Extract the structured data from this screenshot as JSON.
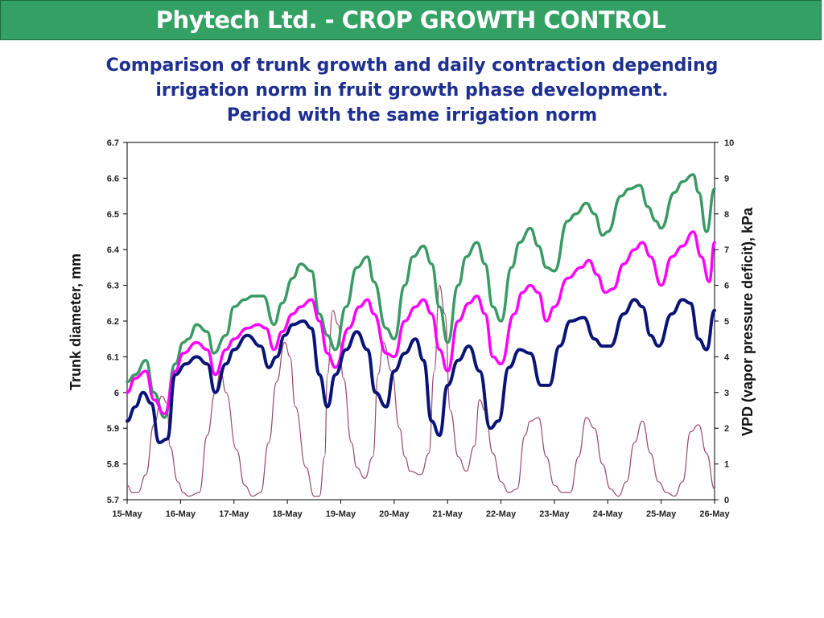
{
  "header": {
    "title": "Phytech Ltd. - CROP GROWTH CONTROL"
  },
  "subtitle": {
    "lines": [
      "Comparison of trunk growth and daily contraction depending",
      "irrigation norm in fruit growth phase development.",
      "Period with the same irrigation norm"
    ]
  },
  "colors": {
    "banner": "#33a064",
    "subtitle": "#1d2f8f",
    "green_series": "#3a9a64",
    "magenta_series": "#ff00ff",
    "navy_series": "#0a1476",
    "vpd_series": "#9b4a72"
  },
  "chart_data": {
    "type": "line",
    "title": "",
    "xlabel": "",
    "ylabel": "Trunk diameter, mm",
    "y2label": "VPD (vapor pressure deficit), kPa",
    "x_ticks": [
      "15-May",
      "16-May",
      "17-May",
      "18-May",
      "19-May",
      "20-May",
      "21-May",
      "22-May",
      "23-May",
      "24-May",
      "25-May",
      "26-May"
    ],
    "xlim": [
      0,
      11
    ],
    "ylim": [
      5.7,
      6.7
    ],
    "y_ticks": [
      "5.7",
      "5.8",
      "5.9",
      "6",
      "6.1",
      "6.2",
      "6.3",
      "6.4",
      "6.5",
      "6.6",
      "6.7"
    ],
    "y2lim": [
      0,
      10
    ],
    "y2_ticks": [
      "0",
      "1",
      "2",
      "3",
      "4",
      "5",
      "6",
      "7",
      "8",
      "9",
      "10"
    ],
    "grid": false,
    "legend": "none",
    "series": [
      {
        "axis": "left",
        "color": "#3a9a64",
        "width": 3.5,
        "x": [
          0,
          0.15,
          0.35,
          0.5,
          0.7,
          0.9,
          1.05,
          1.15,
          1.3,
          1.5,
          1.62,
          1.85,
          2.0,
          2.2,
          2.35,
          2.55,
          2.75,
          2.9,
          3.1,
          3.25,
          3.45,
          3.6,
          3.75,
          3.9,
          4.1,
          4.3,
          4.5,
          4.62,
          4.85,
          5.0,
          5.2,
          5.35,
          5.55,
          5.7,
          5.85,
          6.0,
          6.2,
          6.35,
          6.55,
          6.7,
          6.85,
          7.0,
          7.2,
          7.35,
          7.55,
          7.7,
          7.85,
          8.0,
          8.25,
          8.4,
          8.6,
          8.75,
          8.9,
          9.0,
          9.25,
          9.4,
          9.6,
          9.75,
          9.9,
          10.0,
          10.25,
          10.4,
          10.6,
          10.7,
          10.85,
          11.0
        ],
        "y": [
          6.03,
          6.05,
          6.09,
          6.0,
          5.93,
          6.08,
          6.14,
          6.15,
          6.19,
          6.17,
          6.11,
          6.16,
          6.24,
          6.26,
          6.27,
          6.27,
          6.19,
          6.25,
          6.32,
          6.36,
          6.34,
          6.22,
          6.16,
          6.12,
          6.24,
          6.35,
          6.38,
          6.31,
          6.18,
          6.15,
          6.3,
          6.38,
          6.41,
          6.36,
          6.24,
          6.14,
          6.3,
          6.38,
          6.42,
          6.36,
          6.24,
          6.2,
          6.35,
          6.42,
          6.46,
          6.41,
          6.35,
          6.34,
          6.48,
          6.5,
          6.53,
          6.5,
          6.44,
          6.45,
          6.55,
          6.57,
          6.58,
          6.52,
          6.48,
          6.46,
          6.56,
          6.59,
          6.61,
          6.56,
          6.45,
          6.57
        ]
      },
      {
        "axis": "left",
        "color": "#ff00ff",
        "width": 3.5,
        "x": [
          0,
          0.15,
          0.35,
          0.5,
          0.7,
          0.9,
          1.05,
          1.3,
          1.5,
          1.65,
          1.85,
          2.0,
          2.25,
          2.45,
          2.6,
          2.75,
          2.9,
          3.1,
          3.25,
          3.45,
          3.6,
          3.75,
          3.9,
          4.15,
          4.35,
          4.5,
          4.62,
          4.85,
          5.0,
          5.2,
          5.4,
          5.55,
          5.7,
          5.85,
          6.0,
          6.2,
          6.4,
          6.55,
          6.7,
          6.85,
          7.0,
          7.25,
          7.4,
          7.55,
          7.7,
          7.85,
          8.0,
          8.25,
          8.5,
          8.65,
          8.8,
          8.95,
          9.1,
          9.3,
          9.5,
          9.65,
          9.8,
          10.0,
          10.2,
          10.4,
          10.6,
          10.75,
          10.9,
          11.0
        ],
        "y": [
          6.0,
          6.04,
          6.06,
          5.98,
          5.94,
          6.06,
          6.11,
          6.14,
          6.12,
          6.05,
          6.12,
          6.15,
          6.18,
          6.19,
          6.18,
          6.12,
          6.17,
          6.22,
          6.24,
          6.26,
          6.2,
          6.11,
          6.07,
          6.18,
          6.24,
          6.26,
          6.22,
          6.11,
          6.1,
          6.2,
          6.24,
          6.26,
          6.22,
          6.12,
          6.06,
          6.2,
          6.25,
          6.27,
          6.22,
          6.1,
          6.08,
          6.22,
          6.28,
          6.3,
          6.28,
          6.2,
          6.24,
          6.32,
          6.35,
          6.37,
          6.33,
          6.28,
          6.29,
          6.36,
          6.4,
          6.42,
          6.38,
          6.3,
          6.38,
          6.41,
          6.45,
          6.38,
          6.31,
          6.42
        ]
      },
      {
        "axis": "left",
        "color": "#0a1476",
        "width": 4,
        "x": [
          0,
          0.15,
          0.3,
          0.45,
          0.6,
          0.75,
          0.9,
          1.1,
          1.3,
          1.5,
          1.65,
          1.85,
          2.0,
          2.25,
          2.5,
          2.65,
          2.8,
          2.95,
          3.1,
          3.3,
          3.45,
          3.6,
          3.75,
          3.9,
          4.1,
          4.3,
          4.5,
          4.65,
          4.85,
          5.0,
          5.2,
          5.4,
          5.55,
          5.7,
          5.85,
          6.0,
          6.2,
          6.4,
          6.6,
          6.8,
          6.95,
          7.15,
          7.35,
          7.55,
          7.75,
          7.9,
          8.1,
          8.3,
          8.55,
          8.75,
          8.9,
          9.05,
          9.3,
          9.5,
          9.65,
          9.8,
          9.95,
          10.2,
          10.4,
          10.55,
          10.7,
          10.85,
          11.0
        ],
        "y": [
          5.92,
          5.96,
          6.0,
          5.97,
          5.86,
          5.87,
          6.05,
          6.08,
          6.1,
          6.08,
          6.0,
          6.08,
          6.12,
          6.16,
          6.13,
          6.07,
          6.1,
          6.16,
          6.19,
          6.2,
          6.18,
          6.05,
          5.96,
          6.05,
          6.12,
          6.17,
          6.12,
          6.0,
          5.96,
          6.06,
          6.11,
          6.15,
          6.09,
          5.92,
          5.88,
          6.02,
          6.09,
          6.13,
          6.06,
          5.9,
          5.92,
          6.07,
          6.12,
          6.11,
          6.02,
          6.02,
          6.13,
          6.2,
          6.21,
          6.15,
          6.13,
          6.13,
          6.22,
          6.26,
          6.24,
          6.16,
          6.13,
          6.22,
          6.26,
          6.25,
          6.15,
          6.12,
          6.23
        ]
      },
      {
        "axis": "right",
        "color": "#9b4a72",
        "width": 1.2,
        "x": [
          0,
          0.1,
          0.2,
          0.35,
          0.5,
          0.65,
          0.75,
          0.8,
          0.95,
          1.05,
          1.15,
          1.35,
          1.5,
          1.65,
          1.75,
          1.85,
          2.05,
          2.2,
          2.35,
          2.5,
          2.65,
          2.8,
          2.95,
          3.05,
          3.15,
          3.35,
          3.5,
          3.6,
          3.7,
          3.75,
          3.85,
          3.95,
          4.05,
          4.2,
          4.3,
          4.45,
          4.6,
          4.7,
          4.8,
          4.95,
          5.1,
          5.2,
          5.3,
          5.5,
          5.65,
          5.75,
          5.85,
          5.95,
          6.05,
          6.2,
          6.35,
          6.5,
          6.6,
          6.7,
          6.85,
          7.0,
          7.15,
          7.3,
          7.45,
          7.55,
          7.7,
          7.85,
          8.0,
          8.15,
          8.3,
          8.45,
          8.6,
          8.75,
          8.9,
          9.05,
          9.2,
          9.35,
          9.5,
          9.65,
          9.8,
          9.95,
          10.1,
          10.25,
          10.4,
          10.55,
          10.7,
          10.85,
          11.0
        ],
        "y": [
          0.4,
          0.2,
          0.2,
          0.7,
          2.1,
          2.9,
          2.7,
          1.5,
          0.5,
          0.2,
          0.1,
          0.2,
          1.8,
          3.0,
          3.6,
          3.0,
          1.4,
          0.4,
          0.1,
          0.2,
          1.6,
          3.3,
          4.4,
          4.0,
          2.6,
          0.9,
          0.1,
          0.1,
          1.2,
          3.5,
          5.3,
          4.9,
          3.4,
          1.6,
          0.9,
          0.6,
          1.2,
          3.5,
          4.4,
          3.6,
          2.0,
          1.2,
          0.8,
          0.7,
          1.3,
          3.6,
          6.0,
          5.2,
          2.5,
          1.2,
          0.8,
          1.5,
          2.8,
          2.5,
          1.3,
          0.5,
          0.2,
          0.3,
          1.8,
          2.2,
          2.3,
          1.2,
          0.4,
          0.2,
          0.2,
          1.2,
          2.3,
          2.0,
          1.0,
          0.3,
          0.1,
          0.5,
          1.6,
          2.2,
          1.3,
          0.5,
          0.2,
          0.1,
          0.5,
          1.9,
          2.1,
          1.3,
          0.3
        ]
      }
    ]
  }
}
